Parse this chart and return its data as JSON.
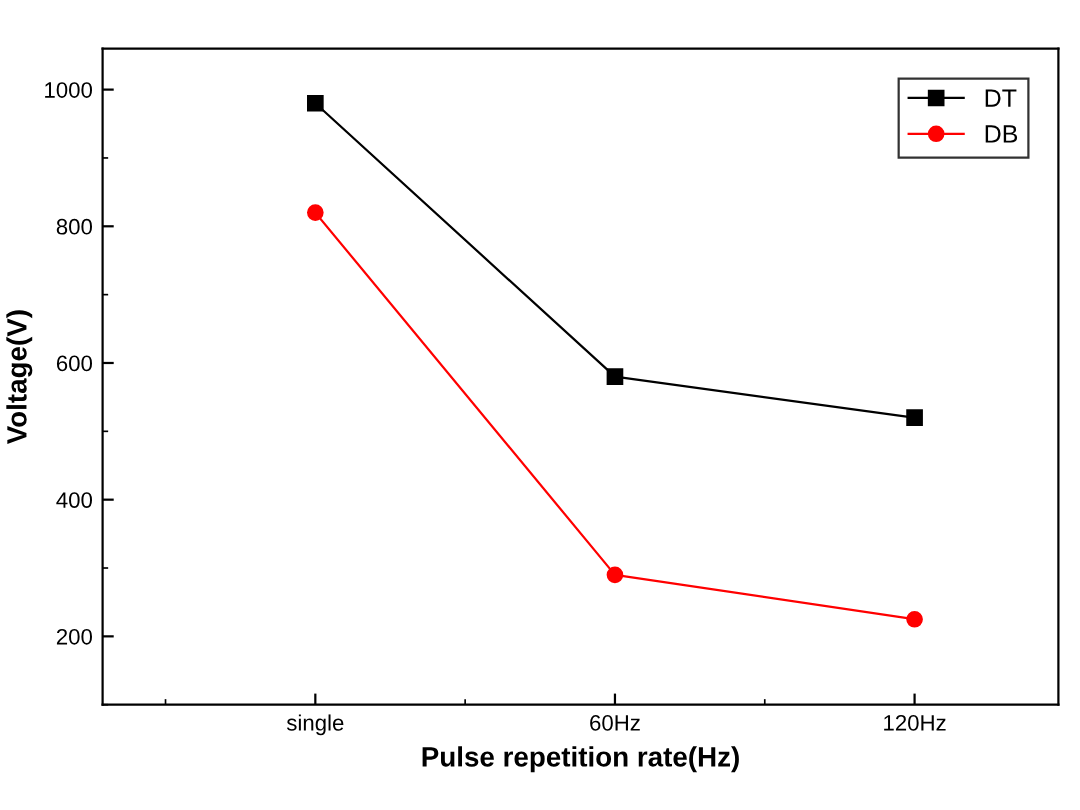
{
  "chart_data": {
    "type": "line",
    "xlabel": "Pulse repetition rate(Hz)",
    "ylabel": "Voltage(V)",
    "categories": [
      "single",
      "60Hz",
      "120Hz"
    ],
    "series": [
      {
        "name": "DT",
        "color": "#000000",
        "marker": "square",
        "values": [
          980,
          580,
          520
        ]
      },
      {
        "name": "DB",
        "color": "#ff0000",
        "marker": "circle",
        "values": [
          820,
          290,
          225
        ]
      }
    ],
    "ylim": [
      100,
      1060
    ],
    "yticks": [
      200,
      400,
      600,
      800,
      1000
    ],
    "grid": false,
    "legend": "top right",
    "line_style": "solid"
  }
}
